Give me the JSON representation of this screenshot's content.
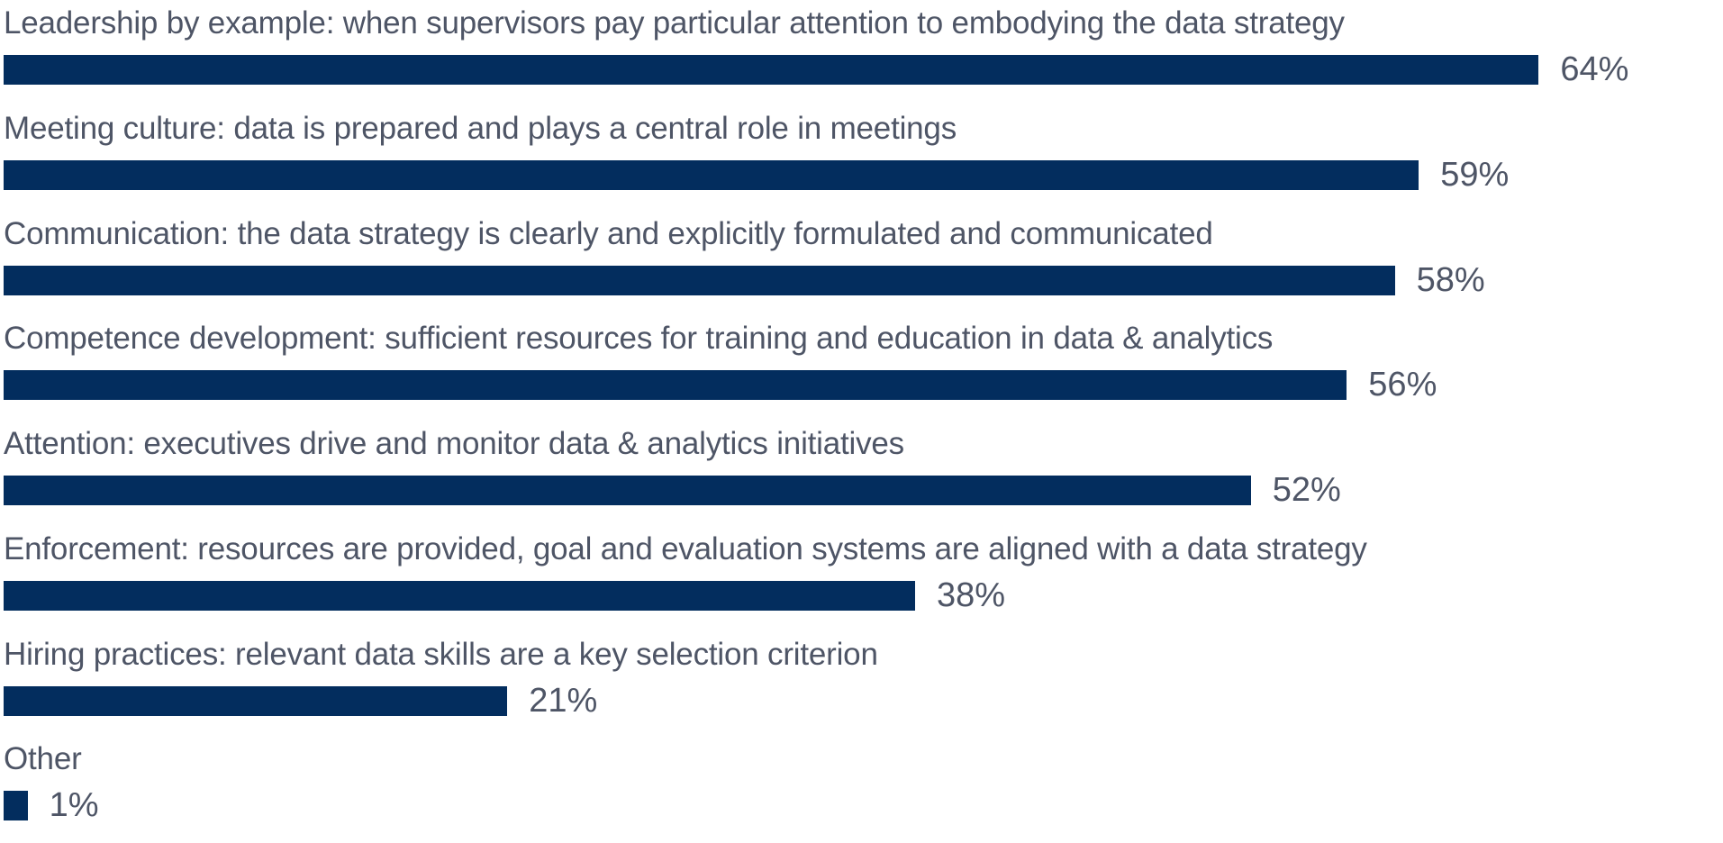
{
  "chart_data": {
    "type": "bar",
    "orientation": "horizontal",
    "title": "",
    "xlabel": "",
    "ylabel": "",
    "xlim": [
      0,
      100
    ],
    "grid": false,
    "legend": false,
    "value_suffix": "%",
    "bar_color": "#032d5e",
    "text_color": "#4e5566",
    "categories": [
      "Leadership by example: when supervisors pay particular attention to embodying the data strategy",
      "Meeting culture: data is prepared and plays a central role in meetings",
      "Communication: the data strategy is clearly and explicitly formulated and communicated",
      "Competence development: sufficient resources for training and education in data & analytics",
      "Attention: executives drive and monitor data & analytics initiatives",
      "Enforcement: resources are provided, goal and evaluation systems are aligned with a data strategy",
      "Hiring practices: relevant data skills are a key selection criterion",
      "Other"
    ],
    "values": [
      64,
      59,
      58,
      56,
      52,
      38,
      21,
      1
    ],
    "items": [
      {
        "label": "Leadership by example: when supervisors pay particular attention to embodying the data strategy",
        "value": 64,
        "display": "64%"
      },
      {
        "label": "Meeting culture: data is prepared and plays a central role in meetings",
        "value": 59,
        "display": "59%"
      },
      {
        "label": "Communication: the data strategy is clearly and explicitly formulated and communicated",
        "value": 58,
        "display": "58%"
      },
      {
        "label": "Competence development: sufficient resources for training and education in data & analytics",
        "value": 56,
        "display": "56%"
      },
      {
        "label": "Attention: executives drive and monitor data & analytics initiatives",
        "value": 52,
        "display": "52%"
      },
      {
        "label": "Enforcement: resources are provided, goal and evaluation systems are aligned with a data strategy",
        "value": 38,
        "display": "38%"
      },
      {
        "label": "Hiring practices: relevant data skills are a key selection criterion",
        "value": 21,
        "display": "21%"
      },
      {
        "label": "Other",
        "value": 1,
        "display": "1%"
      }
    ]
  }
}
